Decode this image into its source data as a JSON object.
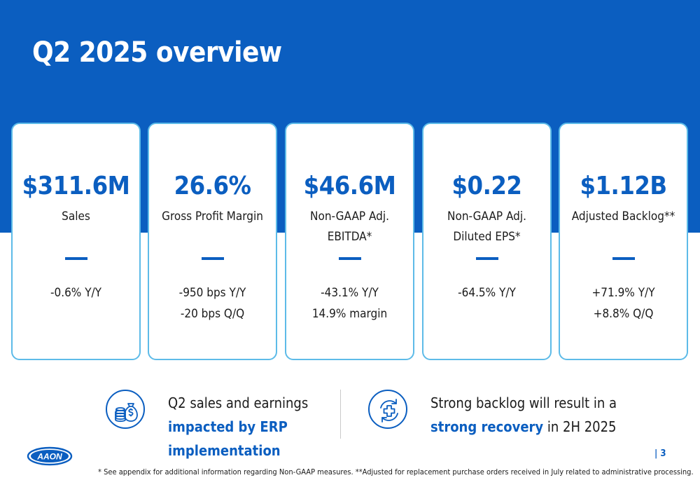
{
  "slide": {
    "title": "Q2 2025 overview",
    "page_number": "| 3"
  },
  "metrics": [
    {
      "value": "$311.6M",
      "label_lines": [
        "Sales"
      ],
      "changes": [
        "-0.6% Y/Y"
      ]
    },
    {
      "value": "26.6%",
      "label_lines": [
        "Gross Profit Margin"
      ],
      "changes": [
        "-950 bps Y/Y",
        "-20 bps Q/Q"
      ]
    },
    {
      "value": "$46.6M",
      "label_lines": [
        "Non-GAAP Adj.",
        "EBITDA*"
      ],
      "changes": [
        "-43.1%  Y/Y",
        "14.9% margin"
      ]
    },
    {
      "value": "$0.22",
      "label_lines": [
        "Non-GAAP Adj.",
        "Diluted EPS*"
      ],
      "changes": [
        "-64.5%  Y/Y"
      ]
    },
    {
      "value": "$1.12B",
      "label_lines": [
        "Adjusted Backlog**"
      ],
      "changes": [
        "+71.9% Y/Y",
        "+8.8% Q/Q"
      ]
    }
  ],
  "notes": {
    "left": {
      "icon": "money-bag-coins-icon",
      "line1": "Q2 sales and earnings",
      "highlight1": "impacted by ERP",
      "highlight2": "implementation"
    },
    "right": {
      "icon": "refresh-medical-cross-icon",
      "line1": "Strong backlog will result in a",
      "highlight": "strong recovery",
      "suffix": " in 2H 2025"
    }
  },
  "logo": {
    "text": "AAON"
  },
  "footnote": "* See appendix for additional information regarding Non-GAAP measures.  **Adjusted for replacement purchase orders received in July related to administrative processing.",
  "colors": {
    "brand_blue": "#0b5ec0",
    "card_border": "#5dbbe8",
    "text": "#1b1b1b"
  }
}
